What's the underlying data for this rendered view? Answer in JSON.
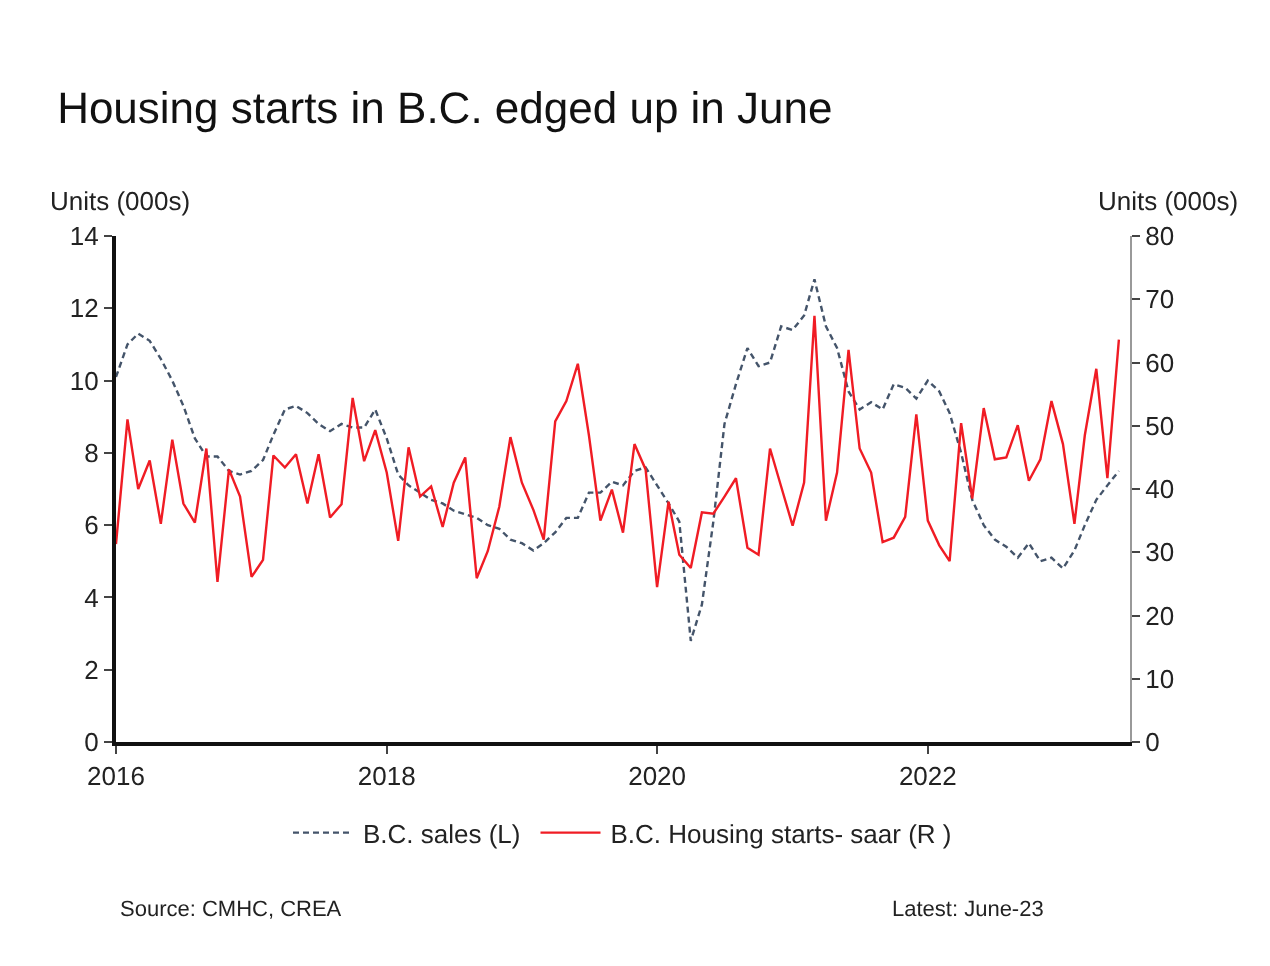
{
  "chart_data": {
    "type": "line",
    "title": "Housing starts in B.C. edged up in June",
    "ylabel": "Units (000s)",
    "y2label": "Units (000s)",
    "x": [
      "2016-01",
      "2016-02",
      "2016-03",
      "2016-04",
      "2016-05",
      "2016-06",
      "2016-07",
      "2016-08",
      "2016-09",
      "2016-10",
      "2016-11",
      "2016-12",
      "2017-01",
      "2017-02",
      "2017-03",
      "2017-04",
      "2017-05",
      "2017-06",
      "2017-07",
      "2017-08",
      "2017-09",
      "2017-10",
      "2017-11",
      "2017-12",
      "2018-01",
      "2018-02",
      "2018-03",
      "2018-04",
      "2018-05",
      "2018-06",
      "2018-07",
      "2018-08",
      "2018-09",
      "2018-10",
      "2018-11",
      "2018-12",
      "2019-01",
      "2019-02",
      "2019-03",
      "2019-04",
      "2019-05",
      "2019-06",
      "2019-07",
      "2019-08",
      "2019-09",
      "2019-10",
      "2019-11",
      "2019-12",
      "2020-01",
      "2020-02",
      "2020-03",
      "2020-04",
      "2020-05",
      "2020-06",
      "2020-07",
      "2020-08",
      "2020-09",
      "2020-10",
      "2020-11",
      "2020-12",
      "2021-01",
      "2021-02",
      "2021-03",
      "2021-04",
      "2021-05",
      "2021-06",
      "2021-07",
      "2021-08",
      "2021-09",
      "2021-10",
      "2021-11",
      "2021-12",
      "2022-01",
      "2022-02",
      "2022-03",
      "2022-04",
      "2022-05",
      "2022-06",
      "2022-07",
      "2022-08",
      "2022-09",
      "2022-10",
      "2022-11",
      "2022-12",
      "2023-01",
      "2023-02",
      "2023-03",
      "2023-04",
      "2023-05",
      "2023-06"
    ],
    "series": [
      {
        "name": "B.C. sales (L)",
        "color": "#44546a",
        "line_style": "dashed",
        "values": [
          10.1,
          11.0,
          11.3,
          11.1,
          10.6,
          10.0,
          9.3,
          8.4,
          7.9,
          7.9,
          7.5,
          7.4,
          7.5,
          7.8,
          8.5,
          9.2,
          9.3,
          9.1,
          8.8,
          8.6,
          8.8,
          8.7,
          8.7,
          9.2,
          8.4,
          7.4,
          7.1,
          6.9,
          6.7,
          6.6,
          6.4,
          6.3,
          6.2,
          6.0,
          5.9,
          5.6,
          5.5,
          5.3,
          5.5,
          5.8,
          6.2,
          6.2,
          6.9,
          6.9,
          7.2,
          7.1,
          7.5,
          7.6,
          7.1,
          6.6,
          6.1,
          2.8,
          3.8,
          6.1,
          8.8,
          9.9,
          10.9,
          10.4,
          10.5,
          11.5,
          11.4,
          11.8,
          12.8,
          11.5,
          10.9,
          9.7,
          9.2,
          9.4,
          9.2,
          9.9,
          9.8,
          9.5,
          10.0,
          9.7,
          9.1,
          8.0,
          6.7,
          6.0,
          5.6,
          5.4,
          5.1,
          5.5,
          5.0,
          5.1,
          4.8,
          5.3,
          6.0,
          6.7,
          7.1,
          7.5
        ]
      },
      {
        "name": "B.C. Housing starts- saar (R )",
        "color": "#f01c24",
        "line_style": "solid",
        "axis": "y2",
        "values": [
          31.3,
          51,
          40,
          44.5,
          34.5,
          47.8,
          37.7,
          34.7,
          46.4,
          25.3,
          43.1,
          38.8,
          26.1,
          28.8,
          45.3,
          43.4,
          45.5,
          37.7,
          45.5,
          35.5,
          37.6,
          54.4,
          44.4,
          49.3,
          42.6,
          31.8,
          46.6,
          38.8,
          40.4,
          34,
          41,
          45,
          25.9,
          30.2,
          37.2,
          48.2,
          41,
          36.7,
          32,
          50.7,
          53.9,
          59.8,
          48.5,
          35,
          39.9,
          33.1,
          47.1,
          43.1,
          24.5,
          38,
          29.6,
          27.5,
          36.3,
          36.1,
          38.8,
          41.7,
          30.7,
          29.6,
          46.4,
          40.4,
          34.2,
          41,
          67.4,
          35,
          42.6,
          62,
          46.4,
          42.6,
          31.6,
          32.3,
          35.6,
          51.8,
          35,
          31.1,
          28.6,
          50.4,
          38.5,
          52.8,
          44.7,
          45,
          50.1,
          41.3,
          44.7,
          53.9,
          47.1,
          34.5,
          48.5,
          59,
          41.7,
          63.6
        ]
      }
    ],
    "xlim": [
      "2016-01",
      "2023-07"
    ],
    "xticks": [
      {
        "value": "2016-01",
        "label": "2016"
      },
      {
        "value": "2018-01",
        "label": "2018"
      },
      {
        "value": "2020-01",
        "label": "2020"
      },
      {
        "value": "2022-01",
        "label": "2022"
      }
    ],
    "ylim": [
      0,
      14
    ],
    "yticks": [
      0,
      2,
      4,
      6,
      8,
      10,
      12,
      14
    ],
    "y2lim": [
      0,
      80
    ],
    "y2ticks": [
      0,
      10,
      20,
      30,
      40,
      50,
      60,
      70,
      80
    ],
    "legend": "bottom",
    "marker": "none",
    "annotations": [
      "Source: CMHC, CREA",
      "Latest: June-23"
    ]
  }
}
